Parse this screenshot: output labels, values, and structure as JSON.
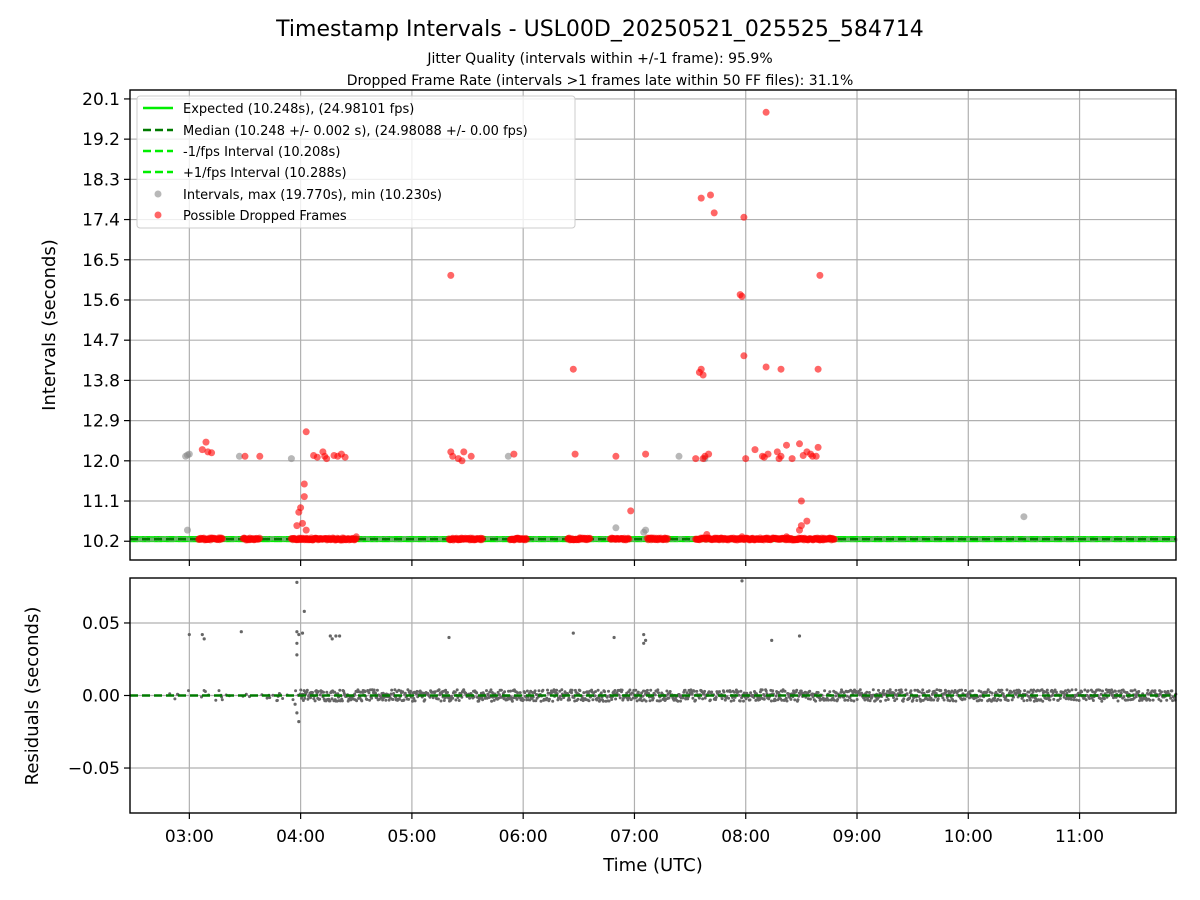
{
  "chart_data": [
    {
      "type": "scatter",
      "title": "Timestamp Intervals - USL00D_20250521_025525_584714",
      "subtitle_1": "Jitter Quality (intervals within +/-1 frame): 95.9%",
      "subtitle_2": "Dropped Frame Rate (intervals >1 frames late within 50 FF files): 31.1%",
      "ylabel": "Intervals (seconds)",
      "ylim": [
        9.78,
        20.3
      ],
      "yticks": [
        "10.2",
        "11.1",
        "12.0",
        "12.9",
        "13.8",
        "14.7",
        "15.6",
        "16.5",
        "17.4",
        "18.3",
        "19.2",
        "20.1"
      ],
      "xlim": [
        "02:28",
        "11:52"
      ],
      "grid": true,
      "legend_position": "top-left",
      "lines": {
        "expected": {
          "label": "Expected (10.248s), (24.98101 fps)",
          "y": 10.248,
          "color": "#00ee00",
          "style": "solid"
        },
        "median": {
          "label": "Median (10.248 +/- 0.002 s), (24.98088 +/- 0.00 fps)",
          "y": 10.248,
          "color": "#007a00",
          "style": "dashed"
        },
        "minus_interval": {
          "label": "-1/fps Interval (10.208s)",
          "y": 10.208,
          "color": "#00ee00",
          "style": "dashed"
        },
        "plus_interval": {
          "label": "+1/fps Interval (10.288s)",
          "y": 10.288,
          "color": "#00ee00",
          "style": "dashed"
        }
      },
      "intervals_series": {
        "label": "Intervals, max (19.770s), min (10.230s)",
        "color": "#888888",
        "points": [
          {
            "t": "02:58",
            "y": 12.1
          },
          {
            "t": "02:59",
            "y": 12.13
          },
          {
            "t": "03:00",
            "y": 12.15
          },
          {
            "t": "02:59",
            "y": 10.45
          },
          {
            "t": "03:27",
            "y": 12.1
          },
          {
            "t": "03:55",
            "y": 12.05
          },
          {
            "t": "05:52",
            "y": 12.1
          },
          {
            "t": "06:50",
            "y": 10.5
          },
          {
            "t": "07:05",
            "y": 10.4
          },
          {
            "t": "07:06",
            "y": 10.45
          },
          {
            "t": "07:24",
            "y": 12.1
          },
          {
            "t": "07:38",
            "y": 12.05
          },
          {
            "t": "10:30",
            "y": 10.75
          }
        ]
      },
      "dropped_series": {
        "label": "Possible Dropped Frames",
        "color": "#ff0000",
        "points": [
          {
            "t": "03:07",
            "y": 12.25
          },
          {
            "t": "03:09",
            "y": 12.42
          },
          {
            "t": "03:10",
            "y": 12.2
          },
          {
            "t": "03:12",
            "y": 12.18
          },
          {
            "t": "03:30",
            "y": 12.1
          },
          {
            "t": "03:38",
            "y": 12.1
          },
          {
            "t": "03:58",
            "y": 10.55
          },
          {
            "t": "03:59",
            "y": 10.85
          },
          {
            "t": "04:00",
            "y": 10.95
          },
          {
            "t": "04:01",
            "y": 10.6
          },
          {
            "t": "04:02",
            "y": 11.2
          },
          {
            "t": "04:02",
            "y": 11.48
          },
          {
            "t": "04:03",
            "y": 12.65
          },
          {
            "t": "04:03",
            "y": 10.45
          },
          {
            "t": "04:07",
            "y": 12.12
          },
          {
            "t": "04:09",
            "y": 12.08
          },
          {
            "t": "04:12",
            "y": 12.2
          },
          {
            "t": "04:13",
            "y": 12.1
          },
          {
            "t": "04:14",
            "y": 12.05
          },
          {
            "t": "04:18",
            "y": 12.12
          },
          {
            "t": "04:20",
            "y": 12.1
          },
          {
            "t": "04:22",
            "y": 12.15
          },
          {
            "t": "04:24",
            "y": 12.08
          },
          {
            "t": "04:30",
            "y": 10.3
          },
          {
            "t": "05:21",
            "y": 16.15
          },
          {
            "t": "05:21",
            "y": 12.2
          },
          {
            "t": "05:22",
            "y": 12.1
          },
          {
            "t": "05:25",
            "y": 12.05
          },
          {
            "t": "05:27",
            "y": 12.0
          },
          {
            "t": "05:28",
            "y": 12.2
          },
          {
            "t": "05:32",
            "y": 12.1
          },
          {
            "t": "05:55",
            "y": 12.15
          },
          {
            "t": "06:27",
            "y": 14.05
          },
          {
            "t": "06:28",
            "y": 12.15
          },
          {
            "t": "06:50",
            "y": 12.1
          },
          {
            "t": "06:58",
            "y": 10.88
          },
          {
            "t": "07:06",
            "y": 12.15
          },
          {
            "t": "07:33",
            "y": 12.05
          },
          {
            "t": "07:35",
            "y": 13.98
          },
          {
            "t": "07:36",
            "y": 14.05
          },
          {
            "t": "07:37",
            "y": 13.92
          },
          {
            "t": "07:36",
            "y": 17.88
          },
          {
            "t": "07:37",
            "y": 12.05
          },
          {
            "t": "07:38",
            "y": 12.1
          },
          {
            "t": "07:40",
            "y": 12.15
          },
          {
            "t": "07:41",
            "y": 17.95
          },
          {
            "t": "07:43",
            "y": 17.55
          },
          {
            "t": "07:39",
            "y": 10.35
          },
          {
            "t": "07:57",
            "y": 15.72
          },
          {
            "t": "07:58",
            "y": 15.68
          },
          {
            "t": "07:59",
            "y": 17.45
          },
          {
            "t": "07:59",
            "y": 14.35
          },
          {
            "t": "08:00",
            "y": 12.05
          },
          {
            "t": "07:58",
            "y": 10.3
          },
          {
            "t": "08:05",
            "y": 12.25
          },
          {
            "t": "08:09",
            "y": 12.1
          },
          {
            "t": "08:10",
            "y": 12.08
          },
          {
            "t": "08:12",
            "y": 12.15
          },
          {
            "t": "08:11",
            "y": 14.1
          },
          {
            "t": "08:11",
            "y": 19.8
          },
          {
            "t": "08:17",
            "y": 12.2
          },
          {
            "t": "08:18",
            "y": 12.05
          },
          {
            "t": "08:19",
            "y": 12.1
          },
          {
            "t": "08:19",
            "y": 14.05
          },
          {
            "t": "08:22",
            "y": 12.35
          },
          {
            "t": "08:25",
            "y": 12.05
          },
          {
            "t": "08:22",
            "y": 10.3
          },
          {
            "t": "08:29",
            "y": 12.38
          },
          {
            "t": "08:31",
            "y": 12.12
          },
          {
            "t": "08:33",
            "y": 12.2
          },
          {
            "t": "08:35",
            "y": 12.15
          },
          {
            "t": "08:36",
            "y": 12.1
          },
          {
            "t": "08:38",
            "y": 12.1
          },
          {
            "t": "08:39",
            "y": 12.3
          },
          {
            "t": "08:39",
            "y": 14.05
          },
          {
            "t": "08:40",
            "y": 16.15
          },
          {
            "t": "08:30",
            "y": 11.1
          },
          {
            "t": "08:30",
            "y": 10.55
          },
          {
            "t": "08:29",
            "y": 10.45
          },
          {
            "t": "08:33",
            "y": 10.65
          }
        ],
        "baseline_bands": [
          [
            "03:05",
            "03:18"
          ],
          [
            "03:29",
            "03:38"
          ],
          [
            "03:55",
            "04:30"
          ],
          [
            "05:20",
            "05:38"
          ],
          [
            "05:53",
            "06:02"
          ],
          [
            "06:24",
            "06:36"
          ],
          [
            "06:47",
            "06:57"
          ],
          [
            "07:07",
            "07:18"
          ],
          [
            "07:33",
            "08:48"
          ]
        ],
        "baseline_y": 10.25
      }
    },
    {
      "type": "scatter",
      "xlabel": "Time (UTC)",
      "ylabel": "Residuals (seconds)",
      "ylim": [
        -0.081,
        0.081
      ],
      "yticks": [
        "−0.05",
        "0.00",
        "0.05"
      ],
      "ytick_values": [
        -0.05,
        0.0,
        0.05
      ],
      "xticks": [
        "03:00",
        "04:00",
        "05:00",
        "06:00",
        "07:00",
        "08:00",
        "09:00",
        "10:00",
        "11:00"
      ],
      "xlim": [
        "02:28",
        "11:52"
      ],
      "grid": true,
      "zero_line_color": "#007a00",
      "residuals_color": "#666666",
      "residuals_outliers": [
        {
          "t": "03:00",
          "y": 0.042
        },
        {
          "t": "03:07",
          "y": 0.042
        },
        {
          "t": "03:08",
          "y": 0.039
        },
        {
          "t": "03:28",
          "y": 0.044
        },
        {
          "t": "03:58",
          "y": 0.078
        },
        {
          "t": "03:58",
          "y": 0.044
        },
        {
          "t": "03:59",
          "y": 0.042
        },
        {
          "t": "03:58",
          "y": 0.036
        },
        {
          "t": "03:58",
          "y": 0.028
        },
        {
          "t": "04:01",
          "y": 0.043
        },
        {
          "t": "04:02",
          "y": 0.058
        },
        {
          "t": "04:16",
          "y": 0.041
        },
        {
          "t": "04:17",
          "y": 0.039
        },
        {
          "t": "04:19",
          "y": 0.041
        },
        {
          "t": "04:21",
          "y": 0.041
        },
        {
          "t": "05:20",
          "y": 0.04
        },
        {
          "t": "06:27",
          "y": 0.043
        },
        {
          "t": "06:49",
          "y": 0.04
        },
        {
          "t": "07:05",
          "y": 0.042
        },
        {
          "t": "07:06",
          "y": 0.038
        },
        {
          "t": "07:05",
          "y": 0.036
        },
        {
          "t": "07:58",
          "y": 0.079
        },
        {
          "t": "08:14",
          "y": 0.038
        },
        {
          "t": "08:29",
          "y": 0.041
        },
        {
          "t": "03:58",
          "y": -0.012
        },
        {
          "t": "03:59",
          "y": -0.018
        },
        {
          "t": "03:57",
          "y": -0.006
        }
      ],
      "residuals_noise_spread": 0.004
    }
  ]
}
